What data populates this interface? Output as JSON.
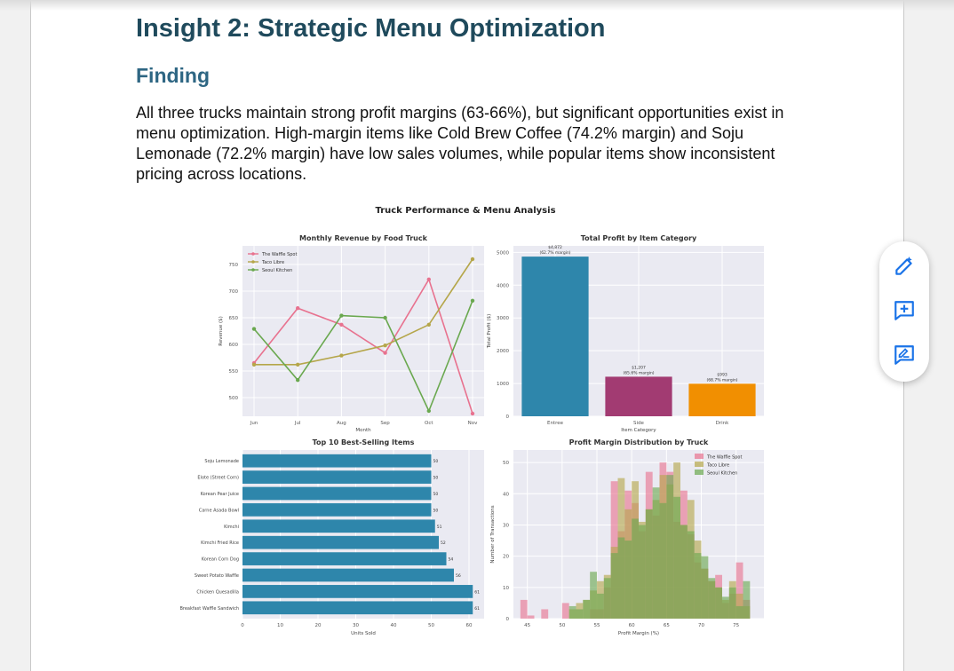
{
  "document": {
    "heading": "Insight 2: Strategic Menu Optimization",
    "subheading": "Finding",
    "paragraph": "All three trucks maintain strong profit margins (63-66%), but significant opportunities exist in menu optimization. High-margin items like Cold Brew Coffee (74.2% margin) and Soju Lemonade (72.2% margin) have low sales volumes, while popular items show inconsistent pricing across locations."
  },
  "toolbar": {
    "icons": [
      "edit-pen-icon",
      "add-comment-icon",
      "suggest-edit-icon"
    ],
    "accent": "#1a73e8"
  },
  "figure": {
    "suptitle": "Truck Performance & Menu Analysis",
    "colors": {
      "waffle": "#e8728f",
      "taco": "#b5a64a",
      "seoul": "#6aa84f",
      "entree": "#2e86ab",
      "side": "#a23b72",
      "drink": "#f18f01",
      "hbar": "#2e86ab",
      "panel_bg": "#eaeaf2"
    }
  },
  "chart_data": [
    {
      "type": "line",
      "title": "Monthly Revenue by Food Truck",
      "xlabel": "Month",
      "ylabel": "Revenue ($)",
      "categories": [
        "Jun",
        "Jul",
        "Aug",
        "Sep",
        "Oct",
        "Nov"
      ],
      "ylim": [
        465,
        785
      ],
      "yticks": [
        500,
        550,
        600,
        650,
        700,
        750
      ],
      "legend": "top-left",
      "grid": true,
      "series": [
        {
          "name": "The Waffle Spot",
          "values": [
            565,
            668,
            637,
            584,
            722,
            470
          ]
        },
        {
          "name": "Taco Libre",
          "values": [
            562,
            562,
            579,
            598,
            637,
            760
          ]
        },
        {
          "name": "Seoul Kitchen",
          "values": [
            629,
            533,
            654,
            650,
            475,
            682
          ]
        }
      ]
    },
    {
      "type": "bar",
      "title": "Total Profit by Item Category",
      "xlabel": "Item Category",
      "ylabel": "Total Profit ($)",
      "categories": [
        "Entree",
        "Side",
        "Drink"
      ],
      "values": [
        4872,
        1207,
        993
      ],
      "labels": [
        "$4,872\n(62.7% margin)",
        "$1,207\n(65.6% margin)",
        "$993\n(68.7% margin)"
      ],
      "ylim": [
        0,
        5200
      ],
      "yticks": [
        0,
        1000,
        2000,
        3000,
        4000,
        5000
      ],
      "grid": true
    },
    {
      "type": "bar",
      "orientation": "horizontal",
      "title": "Top 10 Best-Selling Items",
      "xlabel": "Units Sold",
      "categories": [
        "Soju Lemonade",
        "Elote (Street Corn)",
        "Korean Pear Juice",
        "Carne Asada Bowl",
        "Kimchi",
        "Kimchi Fried Rice",
        "Korean Corn Dog",
        "Sweet Potato Waffle",
        "Chicken Quesadilla",
        "Breakfast Waffle Sandwich"
      ],
      "values": [
        50,
        50,
        50,
        50,
        51,
        52,
        54,
        56,
        61,
        61
      ],
      "xlim": [
        0,
        64
      ],
      "xticks": [
        0,
        10,
        20,
        30,
        40,
        50,
        60
      ],
      "grid": true
    },
    {
      "type": "histogram",
      "title": "Profit Margin Distribution by Truck",
      "xlabel": "Profit Margin (%)",
      "ylabel": "Number of Transactions",
      "xlim": [
        43,
        79
      ],
      "ylim": [
        0,
        54
      ],
      "xticks": [
        45,
        50,
        55,
        60,
        65,
        70,
        75
      ],
      "yticks": [
        0,
        10,
        20,
        30,
        40,
        50
      ],
      "legend": "top-right",
      "grid": true,
      "series": [
        {
          "name": "The Waffle Spot",
          "bins": [
            [
              44,
              45,
              6
            ],
            [
              45,
              46,
              1
            ],
            [
              46,
              47,
              0
            ],
            [
              47,
              48,
              3
            ],
            [
              48,
              49,
              0
            ],
            [
              49,
              50,
              0
            ],
            [
              50,
              51,
              5
            ],
            [
              51,
              52,
              0
            ],
            [
              52,
              53,
              0
            ],
            [
              53,
              54,
              0
            ],
            [
              54,
              55,
              3
            ],
            [
              55,
              56,
              3
            ],
            [
              56,
              57,
              10
            ],
            [
              57,
              58,
              44
            ],
            [
              58,
              59,
              28
            ],
            [
              59,
              60,
              41
            ],
            [
              60,
              61,
              37
            ],
            [
              61,
              62,
              28
            ],
            [
              62,
              63,
              47
            ],
            [
              63,
              64,
              33
            ],
            [
              64,
              65,
              50
            ],
            [
              65,
              66,
              47
            ],
            [
              66,
              67,
              31
            ],
            [
              67,
              68,
              41
            ],
            [
              68,
              69,
              27
            ],
            [
              69,
              70,
              18
            ],
            [
              70,
              71,
              16
            ],
            [
              71,
              72,
              12
            ],
            [
              72,
              73,
              14
            ],
            [
              73,
              74,
              5
            ],
            [
              74,
              75,
              8
            ],
            [
              75,
              76,
              18
            ],
            [
              76,
              77,
              6
            ]
          ]
        },
        {
          "name": "Taco Libre",
          "bins": [
            [
              51,
              52,
              3
            ],
            [
              52,
              53,
              5
            ],
            [
              53,
              54,
              6
            ],
            [
              54,
              55,
              9
            ],
            [
              55,
              56,
              12
            ],
            [
              56,
              57,
              14
            ],
            [
              57,
              58,
              23
            ],
            [
              58,
              59,
              45
            ],
            [
              59,
              60,
              35
            ],
            [
              60,
              61,
              44
            ],
            [
              61,
              62,
              31
            ],
            [
              62,
              63,
              35
            ],
            [
              63,
              64,
              38
            ],
            [
              64,
              65,
              46
            ],
            [
              65,
              66,
              43
            ],
            [
              66,
              67,
              50
            ],
            [
              67,
              68,
              30
            ],
            [
              68,
              69,
              38
            ],
            [
              69,
              70,
              25
            ],
            [
              70,
              71,
              16
            ],
            [
              71,
              72,
              12
            ],
            [
              72,
              73,
              10
            ],
            [
              73,
              74,
              6
            ],
            [
              74,
              75,
              12
            ],
            [
              75,
              76,
              8
            ],
            [
              76,
              77,
              4
            ]
          ]
        },
        {
          "name": "Seoul Kitchen",
          "bins": [
            [
              51,
              52,
              4
            ],
            [
              52,
              53,
              3
            ],
            [
              53,
              54,
              6
            ],
            [
              54,
              55,
              15
            ],
            [
              55,
              56,
              8
            ],
            [
              56,
              57,
              13
            ],
            [
              57,
              58,
              21
            ],
            [
              58,
              59,
              26
            ],
            [
              59,
              60,
              25
            ],
            [
              60,
              61,
              32
            ],
            [
              61,
              62,
              30
            ],
            [
              62,
              63,
              35
            ],
            [
              63,
              64,
              42
            ],
            [
              64,
              65,
              37
            ],
            [
              65,
              66,
              46
            ],
            [
              66,
              67,
              39
            ],
            [
              67,
              68,
              30
            ],
            [
              68,
              69,
              28
            ],
            [
              69,
              70,
              21
            ],
            [
              70,
              71,
              20
            ],
            [
              71,
              72,
              13
            ],
            [
              72,
              73,
              10
            ],
            [
              73,
              74,
              7
            ],
            [
              74,
              75,
              10
            ],
            [
              75,
              76,
              4
            ],
            [
              76,
              77,
              12
            ]
          ]
        }
      ]
    }
  ]
}
